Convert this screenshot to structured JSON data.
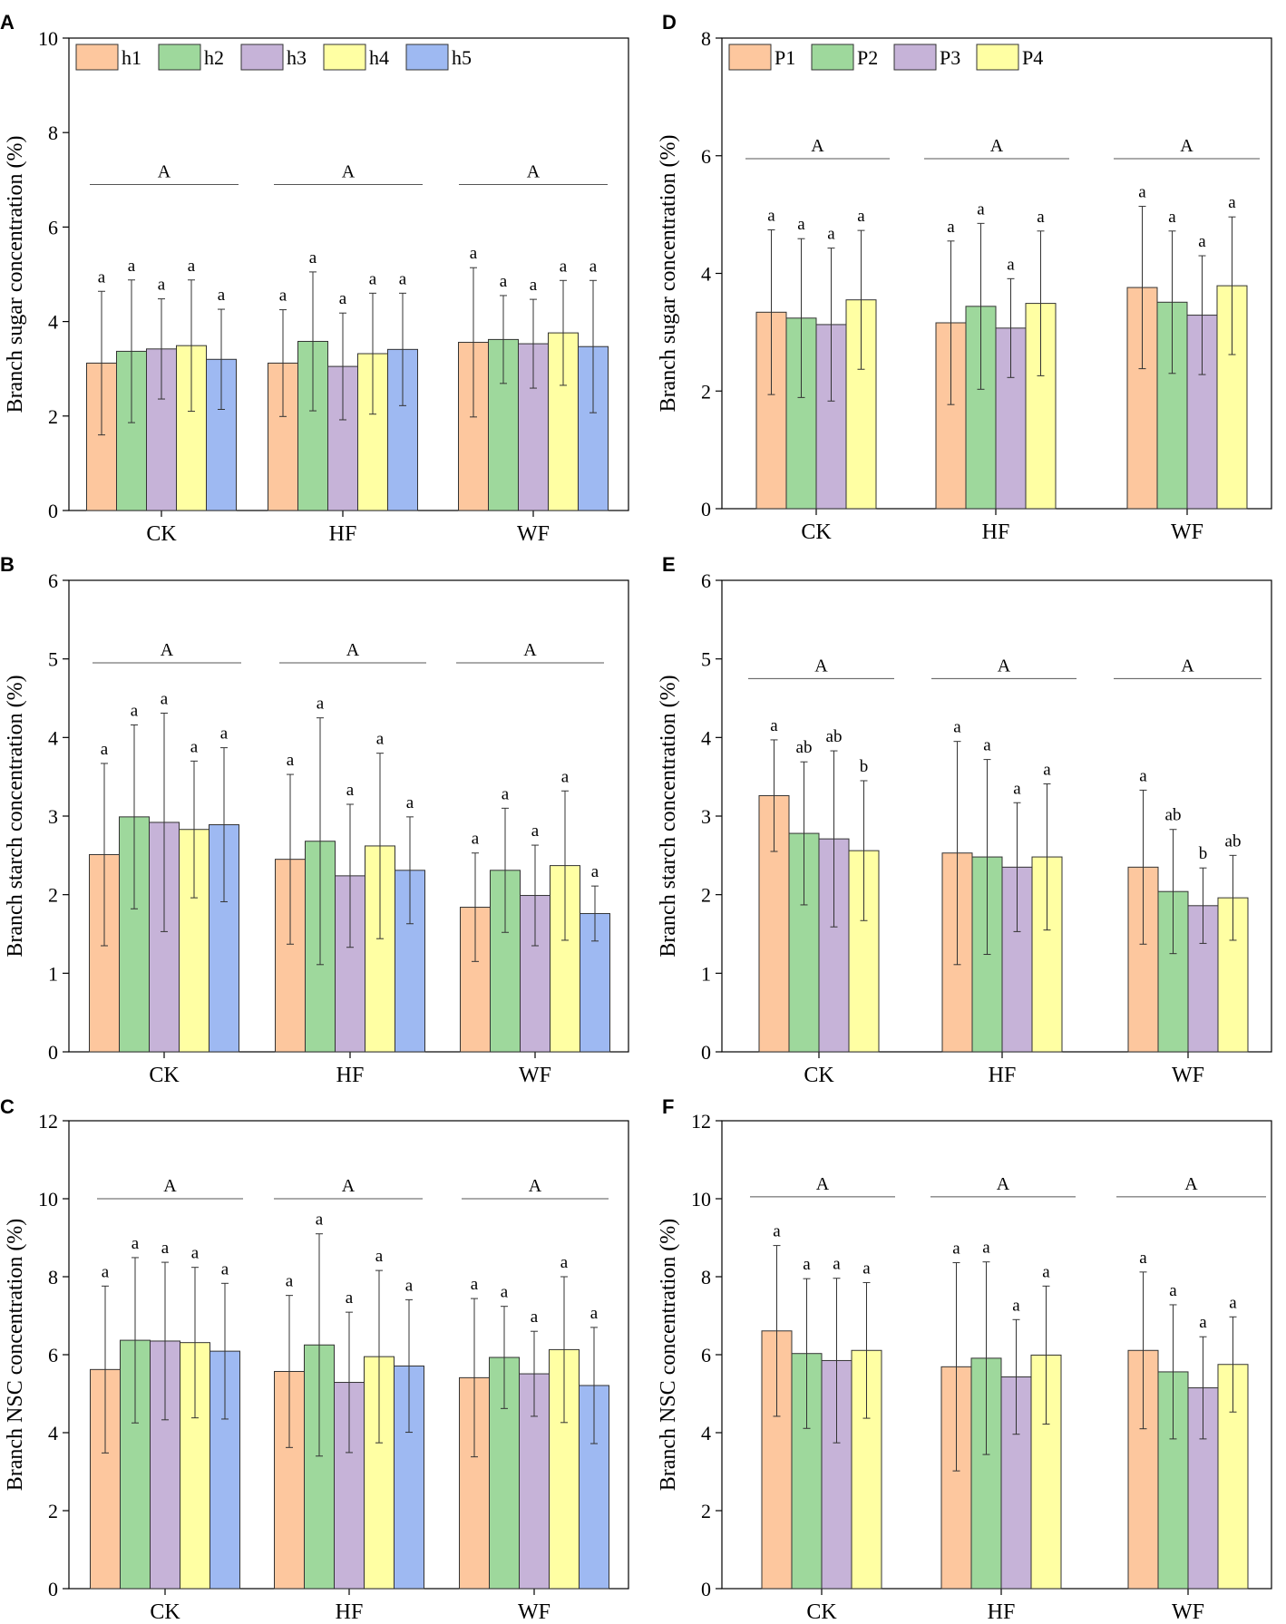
{
  "chart_data": [
    {
      "panel": "A",
      "type": "bar",
      "ylabel": "Branch sugar concentration (%)",
      "xlabel": "",
      "ylim": [
        0,
        10
      ],
      "yticks": [
        0,
        2,
        4,
        6,
        8,
        10
      ],
      "categories": [
        "CK",
        "HF",
        "WF"
      ],
      "legend_position": "top-left",
      "group_letters": [
        "A",
        "A",
        "A"
      ],
      "series": [
        {
          "name": "h1",
          "color": "#FDC79E",
          "values": [
            3.12,
            3.12,
            3.56
          ],
          "errors": [
            1.52,
            1.13,
            1.58
          ],
          "letters": [
            "a",
            "a",
            "a"
          ]
        },
        {
          "name": "h2",
          "color": "#9ED89C",
          "values": [
            3.37,
            3.58,
            3.62
          ],
          "errors": [
            1.51,
            1.47,
            0.93
          ],
          "letters": [
            "a",
            "a",
            "a"
          ]
        },
        {
          "name": "h3",
          "color": "#C6B3D8",
          "values": [
            3.42,
            3.05,
            3.53
          ],
          "errors": [
            1.06,
            1.13,
            0.94
          ],
          "letters": [
            "a",
            "a",
            "a"
          ]
        },
        {
          "name": "h4",
          "color": "#FFFFA3",
          "values": [
            3.49,
            3.32,
            3.76
          ],
          "errors": [
            1.39,
            1.28,
            1.11
          ],
          "letters": [
            "a",
            "a",
            "a"
          ]
        },
        {
          "name": "h5",
          "color": "#9EB9F2",
          "values": [
            3.2,
            3.41,
            3.47
          ],
          "errors": [
            1.06,
            1.19,
            1.4
          ],
          "letters": [
            "a",
            "a",
            "a"
          ]
        }
      ]
    },
    {
      "panel": "B",
      "type": "bar",
      "ylabel": "Branch starch concentration (%)",
      "xlabel": "",
      "ylim": [
        0,
        6
      ],
      "yticks": [
        0,
        1,
        2,
        3,
        4,
        5,
        6
      ],
      "categories": [
        "CK",
        "HF",
        "WF"
      ],
      "group_letters": [
        "A",
        "A",
        "A"
      ],
      "series": [
        {
          "name": "h1",
          "color": "#FDC79E",
          "values": [
            2.51,
            2.45,
            1.84
          ],
          "errors": [
            1.16,
            1.08,
            0.69
          ],
          "letters": [
            "a",
            "a",
            "a"
          ]
        },
        {
          "name": "h2",
          "color": "#9ED89C",
          "values": [
            2.99,
            2.68,
            2.31
          ],
          "errors": [
            1.17,
            1.57,
            0.79
          ],
          "letters": [
            "a",
            "a",
            "a"
          ]
        },
        {
          "name": "h3",
          "color": "#C6B3D8",
          "values": [
            2.92,
            2.24,
            1.99
          ],
          "errors": [
            1.39,
            0.91,
            0.64
          ],
          "letters": [
            "a",
            "a",
            "a"
          ]
        },
        {
          "name": "h4",
          "color": "#FFFFA3",
          "values": [
            2.83,
            2.62,
            2.37
          ],
          "errors": [
            0.87,
            1.18,
            0.95
          ],
          "letters": [
            "a",
            "a",
            "a"
          ]
        },
        {
          "name": "h5",
          "color": "#9EB9F2",
          "values": [
            2.89,
            2.31,
            1.76
          ],
          "errors": [
            0.98,
            0.68,
            0.35
          ],
          "letters": [
            "a",
            "a",
            "a"
          ]
        }
      ]
    },
    {
      "panel": "C",
      "type": "bar",
      "ylabel": "Branch NSC concentration (%)",
      "xlabel": "",
      "ylim": [
        0,
        12
      ],
      "yticks": [
        0,
        2,
        4,
        6,
        8,
        10,
        12
      ],
      "categories": [
        "CK",
        "HF",
        "WF"
      ],
      "group_letters": [
        "A",
        "A",
        "A"
      ],
      "series": [
        {
          "name": "h1",
          "color": "#FDC79E",
          "values": [
            5.62,
            5.57,
            5.41
          ],
          "errors": [
            2.14,
            1.95,
            2.03
          ],
          "letters": [
            "a",
            "a",
            "a"
          ]
        },
        {
          "name": "h2",
          "color": "#9ED89C",
          "values": [
            6.37,
            6.25,
            5.93
          ],
          "errors": [
            2.12,
            2.85,
            1.31
          ],
          "letters": [
            "a",
            "a",
            "a"
          ]
        },
        {
          "name": "h3",
          "color": "#C6B3D8",
          "values": [
            6.35,
            5.29,
            5.51
          ],
          "errors": [
            2.02,
            1.8,
            1.09
          ],
          "letters": [
            "a",
            "a",
            "a"
          ]
        },
        {
          "name": "h4",
          "color": "#FFFFA3",
          "values": [
            6.31,
            5.95,
            6.13
          ],
          "errors": [
            1.93,
            2.21,
            1.87
          ],
          "letters": [
            "a",
            "a",
            "a"
          ]
        },
        {
          "name": "h5",
          "color": "#9EB9F2",
          "values": [
            6.09,
            5.71,
            5.21
          ],
          "errors": [
            1.74,
            1.7,
            1.49
          ],
          "letters": [
            "a",
            "a",
            "a"
          ]
        }
      ]
    },
    {
      "panel": "D",
      "type": "bar",
      "ylabel": "Branch sugar concentration (%)",
      "xlabel": "",
      "ylim": [
        0,
        8
      ],
      "yticks": [
        0,
        2,
        4,
        6,
        8
      ],
      "categories": [
        "CK",
        "HF",
        "WF"
      ],
      "legend_position": "top-left",
      "group_letters": [
        "A",
        "A",
        "A"
      ],
      "series": [
        {
          "name": "P1",
          "color": "#FDC79E",
          "values": [
            3.34,
            3.16,
            3.76
          ],
          "errors": [
            1.4,
            1.39,
            1.38
          ],
          "letters": [
            "a",
            "a",
            "a"
          ]
        },
        {
          "name": "P2",
          "color": "#9ED89C",
          "values": [
            3.24,
            3.44,
            3.51
          ],
          "errors": [
            1.35,
            1.41,
            1.21
          ],
          "letters": [
            "a",
            "a",
            "a"
          ]
        },
        {
          "name": "P3",
          "color": "#C6B3D8",
          "values": [
            3.13,
            3.07,
            3.29
          ],
          "errors": [
            1.3,
            0.84,
            1.01
          ],
          "letters": [
            "a",
            "a",
            "a"
          ]
        },
        {
          "name": "P4",
          "color": "#FFFFA3",
          "values": [
            3.55,
            3.49,
            3.79
          ],
          "errors": [
            1.18,
            1.23,
            1.17
          ],
          "letters": [
            "a",
            "a",
            "a"
          ]
        }
      ]
    },
    {
      "panel": "E",
      "type": "bar",
      "ylabel": "Branch starch concentration (%)",
      "xlabel": "",
      "ylim": [
        0,
        6
      ],
      "yticks": [
        0,
        1,
        2,
        3,
        4,
        5,
        6
      ],
      "categories": [
        "CK",
        "HF",
        "WF"
      ],
      "group_letters": [
        "A",
        "A",
        "A"
      ],
      "series": [
        {
          "name": "P1",
          "color": "#FDC79E",
          "values": [
            3.26,
            2.53,
            2.35
          ],
          "errors": [
            0.71,
            1.42,
            0.98
          ],
          "letters": [
            "a",
            "a",
            "a"
          ]
        },
        {
          "name": "P2",
          "color": "#9ED89C",
          "values": [
            2.78,
            2.48,
            2.04
          ],
          "errors": [
            0.91,
            1.24,
            0.79
          ],
          "letters": [
            "ab",
            "a",
            "ab"
          ]
        },
        {
          "name": "P3",
          "color": "#C6B3D8",
          "values": [
            2.71,
            2.35,
            1.86
          ],
          "errors": [
            1.12,
            0.82,
            0.48
          ],
          "letters": [
            "ab",
            "a",
            "b"
          ]
        },
        {
          "name": "P4",
          "color": "#FFFFA3",
          "values": [
            2.56,
            2.48,
            1.96
          ],
          "errors": [
            0.89,
            0.93,
            0.54
          ],
          "letters": [
            "b",
            "a",
            "ab"
          ]
        }
      ]
    },
    {
      "panel": "F",
      "type": "bar",
      "ylabel": "Branch NSC concentration (%)",
      "xlabel": "",
      "ylim": [
        0,
        12
      ],
      "yticks": [
        0,
        2,
        4,
        6,
        8,
        10,
        12
      ],
      "categories": [
        "CK",
        "HF",
        "WF"
      ],
      "group_letters": [
        "A",
        "A",
        "A"
      ],
      "series": [
        {
          "name": "P1",
          "color": "#FDC79E",
          "values": [
            6.61,
            5.69,
            6.11
          ],
          "errors": [
            2.19,
            2.67,
            2.01
          ],
          "letters": [
            "a",
            "a",
            "a"
          ]
        },
        {
          "name": "P2",
          "color": "#9ED89C",
          "values": [
            6.03,
            5.91,
            5.56
          ],
          "errors": [
            1.92,
            2.47,
            1.72
          ],
          "letters": [
            "a",
            "a",
            "a"
          ]
        },
        {
          "name": "P3",
          "color": "#C6B3D8",
          "values": [
            5.85,
            5.43,
            5.15
          ],
          "errors": [
            2.11,
            1.47,
            1.31
          ],
          "letters": [
            "a",
            "a",
            "a"
          ]
        },
        {
          "name": "P4",
          "color": "#FFFFA3",
          "values": [
            6.11,
            5.99,
            5.75
          ],
          "errors": [
            1.74,
            1.77,
            1.22
          ],
          "letters": [
            "a",
            "a",
            "a"
          ]
        }
      ]
    }
  ]
}
